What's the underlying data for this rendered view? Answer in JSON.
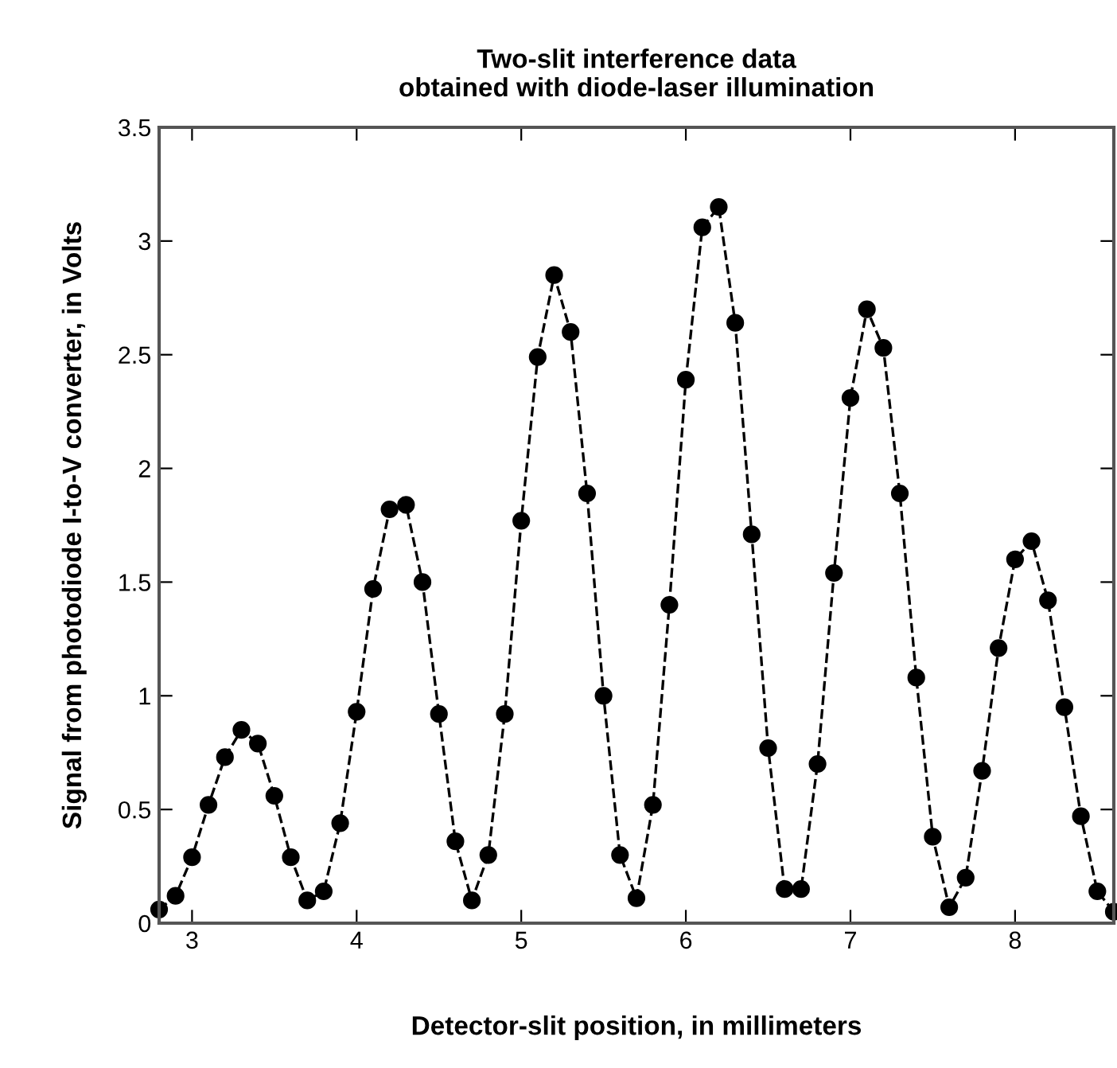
{
  "chart_data": {
    "type": "line",
    "title": "Two-slit interference data\nobtained with diode-laser illumination",
    "xlabel": "Detector-slit position, in millimeters",
    "ylabel": "Signal from photodiode I-to-V converter, in Volts",
    "x": [
      2.8,
      2.9,
      3.0,
      3.1,
      3.2,
      3.3,
      3.4,
      3.5,
      3.6,
      3.7,
      3.8,
      3.9,
      4.0,
      4.1,
      4.2,
      4.3,
      4.4,
      4.5,
      4.6,
      4.7,
      4.8,
      4.9,
      5.0,
      5.1,
      5.2,
      5.3,
      5.4,
      5.5,
      5.6,
      5.7,
      5.8,
      5.9,
      6.0,
      6.1,
      6.2,
      6.3,
      6.4,
      6.5,
      6.6,
      6.7,
      6.8,
      6.9,
      7.0,
      7.1,
      7.2,
      7.3,
      7.4,
      7.5,
      7.6,
      7.7,
      7.8,
      7.9,
      8.0,
      8.1,
      8.2,
      8.3,
      8.4,
      8.5,
      8.6
    ],
    "series": [
      {
        "color": "#000000",
        "values": [
          0.06,
          0.12,
          0.29,
          0.52,
          0.73,
          0.85,
          0.79,
          0.56,
          0.29,
          0.1,
          0.14,
          0.44,
          0.93,
          1.47,
          1.82,
          1.84,
          1.5,
          0.92,
          0.36,
          0.1,
          0.3,
          0.92,
          1.77,
          2.49,
          2.85,
          2.6,
          1.89,
          1.0,
          0.3,
          0.11,
          0.52,
          1.4,
          2.39,
          3.06,
          3.15,
          2.64,
          1.71,
          0.77,
          0.15,
          0.15,
          0.7,
          1.54,
          2.31,
          2.7,
          2.53,
          1.89,
          1.08,
          0.38,
          0.07,
          0.2,
          0.67,
          1.21,
          1.6,
          1.68,
          1.42,
          0.95,
          0.47,
          0.14,
          0.05
        ]
      }
    ],
    "xlim": [
      2.8,
      8.6
    ],
    "xticks": [
      3,
      4,
      5,
      6,
      7,
      8
    ],
    "ylim": [
      0,
      3.5
    ],
    "yticks": [
      0,
      0.5,
      1,
      1.5,
      2,
      2.5,
      3,
      3.5
    ],
    "grid": false,
    "legend": false,
    "marker": "circle",
    "line_style": "dashed"
  }
}
